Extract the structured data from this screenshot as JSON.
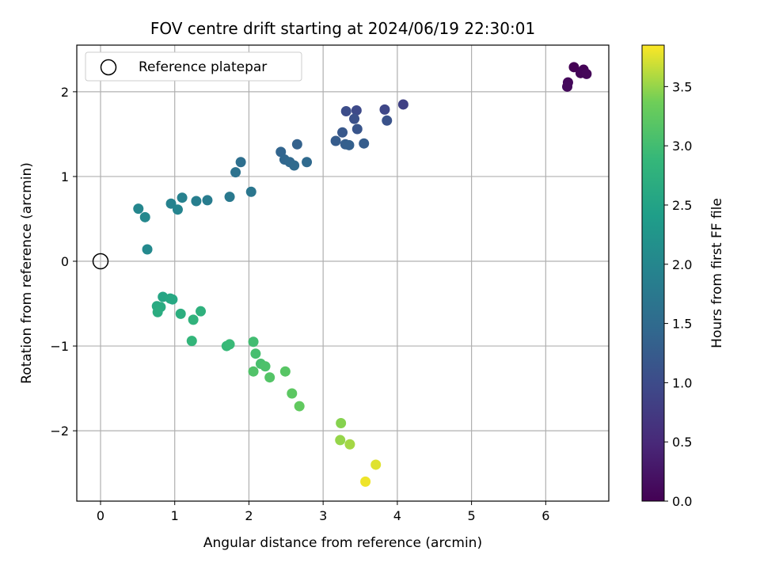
{
  "chart_data": {
    "type": "scatter",
    "title": "FOV centre drift starting at 2024/06/19 22:30:01",
    "xlabel": "Angular distance from reference (arcmin)",
    "ylabel": "Rotation from reference (arcmin)",
    "xlim": [
      -0.32,
      6.85
    ],
    "ylim": [
      -2.83,
      2.55
    ],
    "xticks": [
      0,
      1,
      2,
      3,
      4,
      5,
      6
    ],
    "yticks": [
      -2,
      -1,
      0,
      1,
      2
    ],
    "grid": true,
    "legend": {
      "placement": "upper-left",
      "entries": [
        {
          "label": "Reference platepar",
          "marker": "open-circle"
        }
      ]
    },
    "reference_point": {
      "x": 0,
      "y": 0
    },
    "colorbar": {
      "label": "Hours from first FF file",
      "colormap": "viridis",
      "range": [
        0,
        3.85
      ],
      "ticks": [
        "0.0",
        "0.5",
        "1.0",
        "1.5",
        "2.0",
        "2.5",
        "3.0",
        "3.5"
      ]
    },
    "points": [
      {
        "x": 6.38,
        "y": 2.29,
        "c": 0.0
      },
      {
        "x": 6.51,
        "y": 2.26,
        "c": 0.03
      },
      {
        "x": 6.47,
        "y": 2.22,
        "c": 0.05
      },
      {
        "x": 6.55,
        "y": 2.21,
        "c": 0.07
      },
      {
        "x": 6.3,
        "y": 2.11,
        "c": 0.09
      },
      {
        "x": 6.29,
        "y": 2.06,
        "c": 0.11
      },
      {
        "x": 4.08,
        "y": 1.85,
        "c": 0.85
      },
      {
        "x": 3.83,
        "y": 1.79,
        "c": 0.93
      },
      {
        "x": 3.45,
        "y": 1.78,
        "c": 0.98
      },
      {
        "x": 3.31,
        "y": 1.77,
        "c": 1.03
      },
      {
        "x": 3.42,
        "y": 1.68,
        "c": 1.08
      },
      {
        "x": 3.86,
        "y": 1.66,
        "c": 1.1
      },
      {
        "x": 3.46,
        "y": 1.56,
        "c": 1.15
      },
      {
        "x": 3.26,
        "y": 1.52,
        "c": 1.2
      },
      {
        "x": 3.17,
        "y": 1.42,
        "c": 1.25
      },
      {
        "x": 3.55,
        "y": 1.39,
        "c": 1.27
      },
      {
        "x": 3.3,
        "y": 1.38,
        "c": 1.3
      },
      {
        "x": 3.35,
        "y": 1.37,
        "c": 1.32
      },
      {
        "x": 2.65,
        "y": 1.38,
        "c": 1.35
      },
      {
        "x": 2.43,
        "y": 1.29,
        "c": 1.4
      },
      {
        "x": 2.48,
        "y": 1.2,
        "c": 1.43
      },
      {
        "x": 2.55,
        "y": 1.17,
        "c": 1.46
      },
      {
        "x": 2.78,
        "y": 1.17,
        "c": 1.48
      },
      {
        "x": 2.61,
        "y": 1.13,
        "c": 1.5
      },
      {
        "x": 1.89,
        "y": 1.17,
        "c": 1.58
      },
      {
        "x": 1.82,
        "y": 1.05,
        "c": 1.62
      },
      {
        "x": 2.03,
        "y": 0.82,
        "c": 1.7
      },
      {
        "x": 1.74,
        "y": 0.76,
        "c": 1.75
      },
      {
        "x": 1.44,
        "y": 0.72,
        "c": 1.82
      },
      {
        "x": 1.29,
        "y": 0.71,
        "c": 1.86
      },
      {
        "x": 1.1,
        "y": 0.75,
        "c": 1.9
      },
      {
        "x": 0.95,
        "y": 0.68,
        "c": 1.93
      },
      {
        "x": 1.04,
        "y": 0.61,
        "c": 1.96
      },
      {
        "x": 0.51,
        "y": 0.62,
        "c": 2.0
      },
      {
        "x": 0.6,
        "y": 0.52,
        "c": 2.02
      },
      {
        "x": 0.63,
        "y": 0.14,
        "c": 2.05
      },
      {
        "x": 0.84,
        "y": -0.42,
        "c": 2.55
      },
      {
        "x": 0.94,
        "y": -0.44,
        "c": 2.58
      },
      {
        "x": 0.97,
        "y": -0.45,
        "c": 2.6
      },
      {
        "x": 0.76,
        "y": -0.53,
        "c": 2.63
      },
      {
        "x": 0.81,
        "y": -0.54,
        "c": 2.65
      },
      {
        "x": 0.77,
        "y": -0.6,
        "c": 2.67
      },
      {
        "x": 1.08,
        "y": -0.62,
        "c": 2.72
      },
      {
        "x": 1.35,
        "y": -0.59,
        "c": 2.76
      },
      {
        "x": 1.25,
        "y": -0.69,
        "c": 2.79
      },
      {
        "x": 1.23,
        "y": -0.94,
        "c": 2.85
      },
      {
        "x": 1.7,
        "y": -1.0,
        "c": 2.9
      },
      {
        "x": 1.74,
        "y": -0.98,
        "c": 2.92
      },
      {
        "x": 2.06,
        "y": -0.95,
        "c": 3.0
      },
      {
        "x": 2.09,
        "y": -1.09,
        "c": 3.03
      },
      {
        "x": 2.16,
        "y": -1.21,
        "c": 3.06
      },
      {
        "x": 2.22,
        "y": -1.24,
        "c": 3.09
      },
      {
        "x": 2.06,
        "y": -1.3,
        "c": 3.12
      },
      {
        "x": 2.28,
        "y": -1.37,
        "c": 3.15
      },
      {
        "x": 2.49,
        "y": -1.3,
        "c": 3.18
      },
      {
        "x": 2.58,
        "y": -1.56,
        "c": 3.22
      },
      {
        "x": 2.68,
        "y": -1.71,
        "c": 3.26
      },
      {
        "x": 3.24,
        "y": -1.91,
        "c": 3.45
      },
      {
        "x": 3.23,
        "y": -2.11,
        "c": 3.5
      },
      {
        "x": 3.36,
        "y": -2.16,
        "c": 3.55
      },
      {
        "x": 3.71,
        "y": -2.4,
        "c": 3.75
      },
      {
        "x": 3.57,
        "y": -2.6,
        "c": 3.8
      }
    ]
  }
}
